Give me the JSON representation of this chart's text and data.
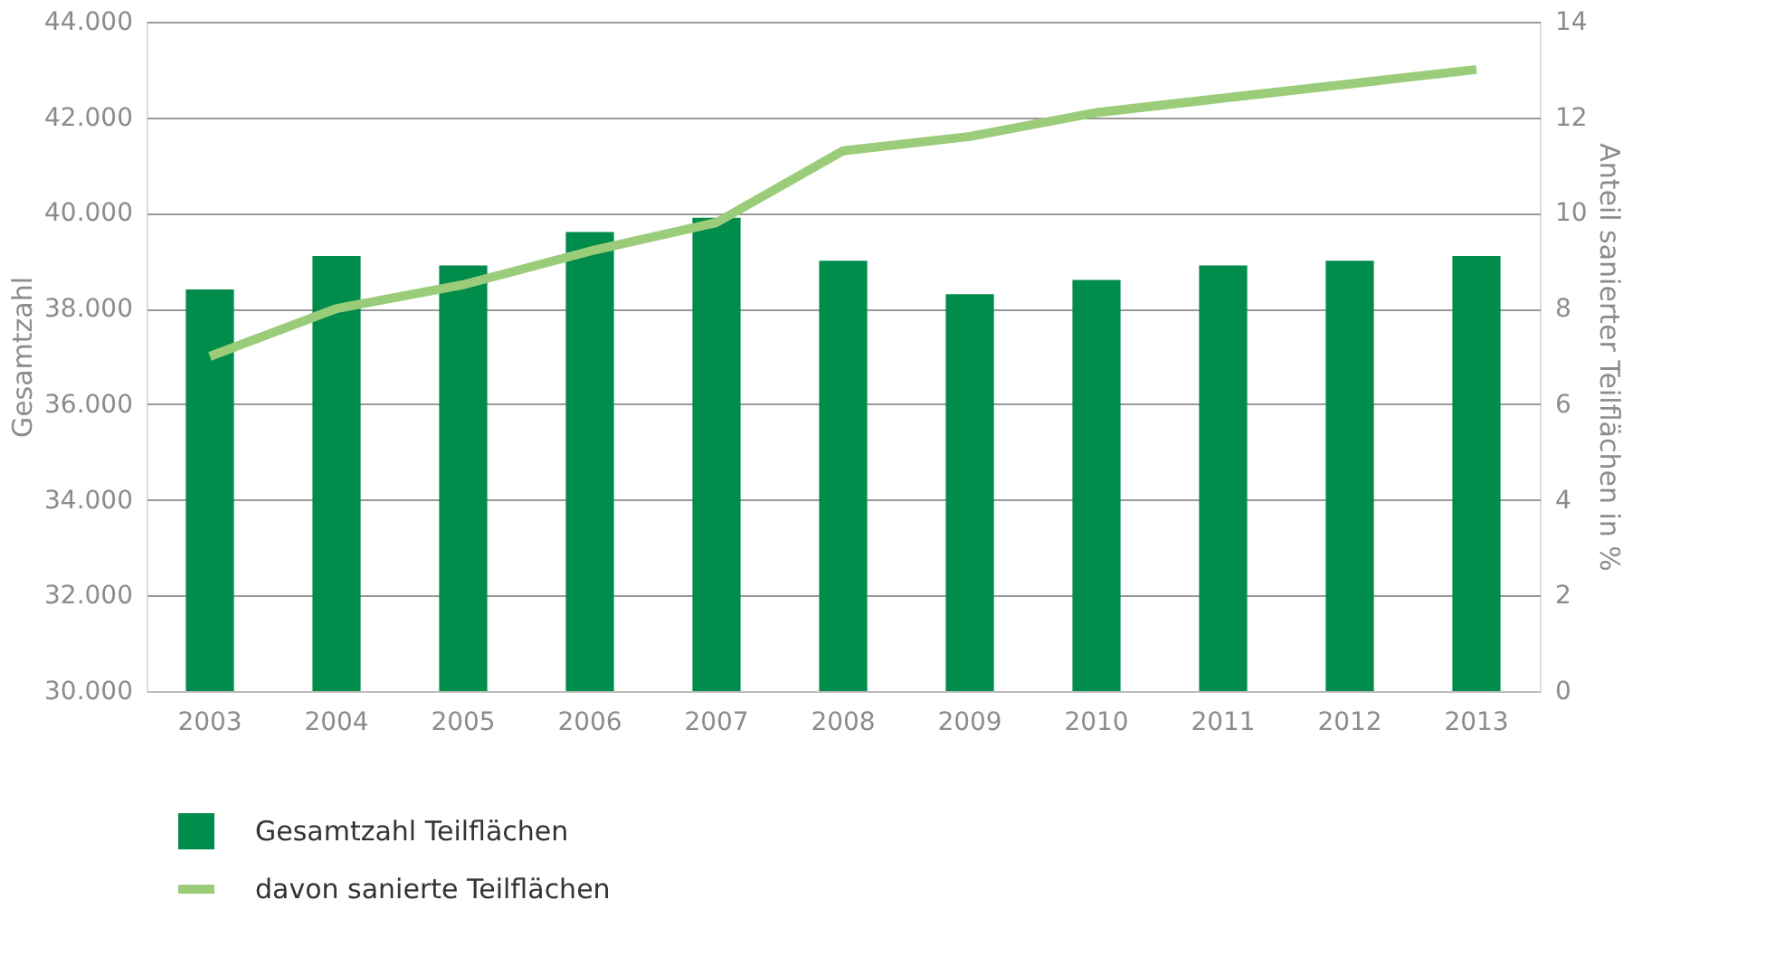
{
  "chart_data": {
    "type": "bar",
    "ylabel": "Gesamtzahl",
    "y2label": "Anteil sanierter Teilflächen in %",
    "categories": [
      "2003",
      "2004",
      "2005",
      "2006",
      "2007",
      "2008",
      "2009",
      "2010",
      "2011",
      "2012",
      "2013"
    ],
    "series": [
      {
        "name": "Gesamtzahl Teilflächen",
        "color": "#008c4a",
        "values": [
          38400,
          39100,
          38900,
          39600,
          39900,
          39000,
          38300,
          38600,
          38900,
          39000,
          39100
        ]
      },
      {
        "name": "davon sanierte Teilflächen",
        "type": "line",
        "axis": "y2",
        "color": "#9bcc7a",
        "values": [
          7.0,
          8.0,
          8.5,
          9.2,
          9.8,
          11.3,
          11.6,
          12.1,
          12.4,
          12.7,
          13.0
        ]
      }
    ],
    "ylim": [
      30000,
      44000
    ],
    "yticks": [
      {
        "value": 30000,
        "label": "30.000"
      },
      {
        "value": 32000,
        "label": "32.000"
      },
      {
        "value": 34000,
        "label": "34.000"
      },
      {
        "value": 36000,
        "label": "36.000"
      },
      {
        "value": 38000,
        "label": "38.000"
      },
      {
        "value": 40000,
        "label": "40.000"
      },
      {
        "value": 42000,
        "label": "42.000"
      },
      {
        "value": 44000,
        "label": "44.000"
      }
    ],
    "y2lim": [
      0,
      14
    ],
    "y2ticks": [
      0,
      2,
      4,
      6,
      8,
      10,
      12,
      14
    ],
    "grid": "y",
    "legend": "bottom left",
    "line_style": "solid",
    "marker": "none"
  }
}
